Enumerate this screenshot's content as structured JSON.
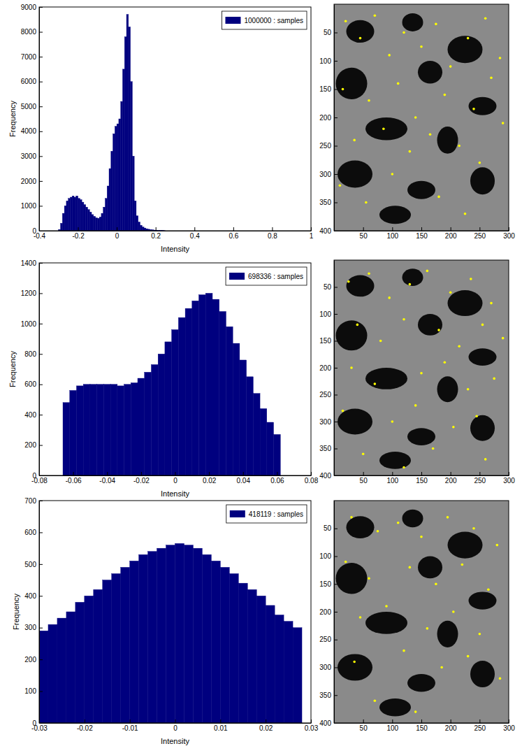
{
  "chart_data": [
    {
      "type": "histogram",
      "xlabel": "Intensity",
      "ylabel": "Frequency",
      "legend": "upper right",
      "xlim": [
        -0.4,
        1
      ],
      "xticks": [
        -0.4,
        -0.2,
        0,
        0.2,
        0.4,
        0.6,
        0.8,
        1
      ],
      "ylim": [
        0,
        9000
      ],
      "yticks": [
        0,
        1000,
        2000,
        3000,
        4000,
        5000,
        6000,
        7000,
        8000,
        9000
      ],
      "bins": [
        -0.31,
        -0.3,
        -0.29,
        -0.28,
        -0.27,
        -0.26,
        -0.25,
        -0.24,
        -0.23,
        -0.22,
        -0.21,
        -0.2,
        -0.19,
        -0.18,
        -0.17,
        -0.16,
        -0.15,
        -0.14,
        -0.13,
        -0.12,
        -0.11,
        -0.1,
        -0.09,
        -0.08,
        -0.07,
        -0.06,
        -0.05,
        -0.04,
        -0.03,
        -0.02,
        -0.01,
        0,
        0.01,
        0.02,
        0.03,
        0.04,
        0.05,
        0.06,
        0.07,
        0.08,
        0.09,
        0.1,
        0.11,
        0.12,
        0.13,
        0.14,
        0.15,
        0.16,
        0.17,
        0.18,
        0.19,
        0.2,
        0.21,
        0.22,
        0.23,
        0.24,
        0.25
      ],
      "series": [
        {
          "name": "1000000 : samples",
          "color": "#00007f",
          "values": [
            0,
            50,
            300,
            700,
            1000,
            1200,
            1300,
            1350,
            1400,
            1350,
            1400,
            1300,
            1250,
            1150,
            1050,
            950,
            850,
            750,
            650,
            580,
            520,
            500,
            550,
            700,
            950,
            1300,
            1800,
            2500,
            3200,
            3900,
            4200,
            4300,
            4500,
            5200,
            6500,
            7800,
            8700,
            8200,
            6000,
            3000,
            1200,
            600,
            350,
            220,
            150,
            110,
            80,
            60,
            45,
            35,
            25,
            20,
            15,
            10,
            8,
            5
          ]
        }
      ]
    },
    {
      "type": "scatter",
      "xlim": [
        0,
        300
      ],
      "xticks": [
        50,
        100,
        150,
        200,
        250,
        300
      ],
      "ylim": [
        400,
        0
      ],
      "yticks": [
        50,
        100,
        150,
        200,
        250,
        300,
        350,
        400
      ],
      "series": [
        {
          "color": "#ffff00",
          "marker": "dot",
          "x": [
            20,
            45,
            70,
            95,
            120,
            150,
            175,
            200,
            230,
            260,
            285,
            15,
            60,
            110,
            140,
            190,
            240,
            270,
            35,
            85,
            130,
            165,
            215,
            250,
            290,
            10,
            55,
            100,
            180,
            225
          ],
          "values": [
            30,
            60,
            20,
            90,
            50,
            75,
            35,
            110,
            60,
            25,
            95,
            150,
            170,
            140,
            200,
            160,
            185,
            130,
            240,
            220,
            260,
            230,
            250,
            280,
            210,
            320,
            350,
            300,
            340,
            370
          ]
        }
      ]
    },
    {
      "type": "histogram",
      "xlabel": "Intensity",
      "ylabel": "Frequency",
      "legend": "upper right",
      "xlim": [
        -0.08,
        0.08
      ],
      "xticks": [
        -0.08,
        -0.06,
        -0.04,
        -0.02,
        0,
        0.02,
        0.04,
        0.06,
        0.08
      ],
      "ylim": [
        0,
        1400
      ],
      "yticks": [
        0,
        200,
        400,
        600,
        800,
        1000,
        1200,
        1400
      ],
      "bins": [
        -0.066,
        -0.062,
        -0.058,
        -0.054,
        -0.05,
        -0.046,
        -0.042,
        -0.038,
        -0.034,
        -0.03,
        -0.026,
        -0.022,
        -0.018,
        -0.014,
        -0.01,
        -0.006,
        -0.002,
        0.002,
        0.006,
        0.01,
        0.014,
        0.018,
        0.022,
        0.026,
        0.03,
        0.034,
        0.038,
        0.042,
        0.046,
        0.05,
        0.054,
        0.058,
        0.062
      ],
      "series": [
        {
          "name": "698336 : samples",
          "color": "#00007f",
          "values": [
            480,
            560,
            590,
            600,
            600,
            600,
            600,
            600,
            590,
            600,
            610,
            640,
            680,
            730,
            800,
            880,
            960,
            1040,
            1100,
            1150,
            1190,
            1200,
            1160,
            1080,
            980,
            870,
            760,
            650,
            540,
            440,
            350,
            270
          ]
        }
      ]
    },
    {
      "type": "scatter",
      "xlim": [
        0,
        300
      ],
      "xticks": [
        50,
        100,
        150,
        200,
        250,
        300
      ],
      "ylim": [
        400,
        0
      ],
      "yticks": [
        50,
        100,
        150,
        200,
        250,
        300,
        350,
        400
      ],
      "series": [
        {
          "color": "#ffff00",
          "marker": "dot",
          "x": [
            25,
            60,
            95,
            130,
            160,
            200,
            235,
            270,
            40,
            80,
            120,
            180,
            215,
            255,
            290,
            30,
            70,
            150,
            190,
            230,
            275,
            15,
            100,
            140,
            205,
            245,
            50,
            170,
            260,
            120
          ],
          "values": [
            40,
            25,
            70,
            45,
            20,
            60,
            35,
            80,
            120,
            150,
            110,
            130,
            160,
            120,
            145,
            200,
            230,
            210,
            190,
            240,
            220,
            280,
            300,
            270,
            310,
            290,
            360,
            350,
            370,
            385
          ]
        }
      ]
    },
    {
      "type": "histogram",
      "xlabel": "Intensity",
      "ylabel": "Frequency",
      "legend": "upper right",
      "xlim": [
        -0.03,
        0.03
      ],
      "xticks": [
        -0.03,
        -0.02,
        -0.01,
        0,
        0.01,
        0.02,
        0.03
      ],
      "ylim": [
        0,
        700
      ],
      "yticks": [
        0,
        100,
        200,
        300,
        400,
        500,
        600,
        700
      ],
      "bins": [
        -0.03,
        -0.028,
        -0.026,
        -0.024,
        -0.022,
        -0.02,
        -0.018,
        -0.016,
        -0.014,
        -0.012,
        -0.01,
        -0.008,
        -0.006,
        -0.004,
        -0.002,
        0,
        0.002,
        0.004,
        0.006,
        0.008,
        0.01,
        0.012,
        0.014,
        0.016,
        0.018,
        0.02,
        0.022,
        0.024,
        0.026,
        0.028
      ],
      "series": [
        {
          "name": "418119 : samples",
          "color": "#00007f",
          "values": [
            290,
            310,
            330,
            350,
            380,
            400,
            420,
            450,
            470,
            490,
            510,
            530,
            540,
            550,
            560,
            565,
            560,
            550,
            530,
            510,
            490,
            470,
            440,
            420,
            400,
            370,
            340,
            320,
            300
          ]
        }
      ]
    },
    {
      "type": "scatter",
      "xlim": [
        0,
        300
      ],
      "xticks": [
        50,
        100,
        150,
        200,
        250,
        300
      ],
      "ylim": [
        400,
        0
      ],
      "yticks": [
        50,
        100,
        150,
        200,
        250,
        300,
        350,
        400
      ],
      "series": [
        {
          "color": "#ffff00",
          "marker": "dot",
          "x": [
            30,
            75,
            110,
            150,
            195,
            240,
            280,
            20,
            60,
            130,
            175,
            220,
            265,
            45,
            90,
            160,
            205,
            250,
            35,
            120,
            185,
            230,
            285,
            70,
            140
          ],
          "values": [
            30,
            55,
            40,
            65,
            30,
            50,
            80,
            110,
            140,
            120,
            150,
            115,
            160,
            210,
            190,
            230,
            200,
            240,
            290,
            270,
            300,
            280,
            320,
            360,
            380
          ]
        }
      ]
    }
  ]
}
